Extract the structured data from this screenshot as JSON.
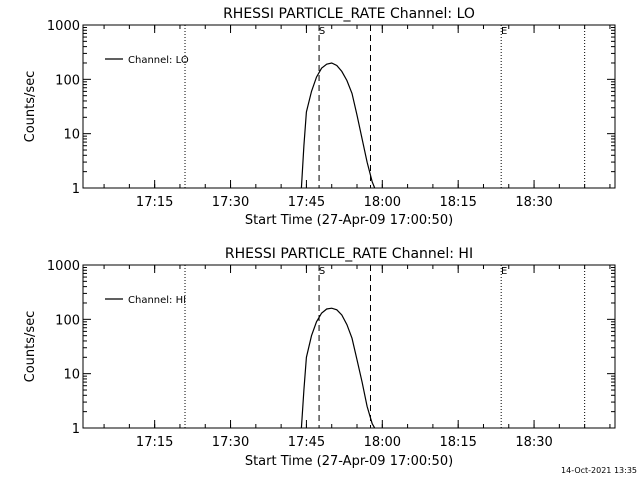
{
  "footer": {
    "timestamp": "14-Oct-2021 13:35"
  },
  "chart_data": [
    {
      "type": "line",
      "title": "RHESSI PARTICLE_RATE Channel: LO",
      "xlabel": "Start Time (27-Apr-09 17:00:50)",
      "ylabel": "Counts/sec",
      "y_scale": "log",
      "ylim": [
        1,
        1000
      ],
      "xlim": [
        "17:00:50",
        "18:46:00"
      ],
      "x_tick_labels": [
        "17:15",
        "17:30",
        "17:45",
        "18:00",
        "18:15",
        "18:30"
      ],
      "x_ticks": [
        "17:15",
        "17:30",
        "17:45",
        "18:00",
        "18:15",
        "18:30"
      ],
      "y_tick_labels": [
        "1",
        "10",
        "100",
        "1000"
      ],
      "y_ticks": [
        1,
        10,
        100,
        1000
      ],
      "legend": {
        "label": "Channel: LO",
        "position": "top-left"
      },
      "series": [
        {
          "name": "Channel: LO",
          "x": [
            "17:44:00",
            "17:44:30",
            "17:45:00",
            "17:46:00",
            "17:47:00",
            "17:48:00",
            "17:49:00",
            "17:50:00",
            "17:51:00",
            "17:52:00",
            "17:53:00",
            "17:54:00",
            "17:55:00",
            "17:56:00",
            "17:57:00",
            "17:58:00",
            "17:58:30"
          ],
          "y": [
            1,
            6,
            25,
            60,
            110,
            160,
            190,
            200,
            180,
            140,
            95,
            55,
            22,
            8,
            3,
            1.3,
            1
          ]
        }
      ],
      "markers": [
        {
          "label": "",
          "time": "17:21:00",
          "style": "dotted"
        },
        {
          "label": "S",
          "time": "17:47:30",
          "style": "dashed"
        },
        {
          "label": "",
          "time": "17:57:40",
          "style": "dashed"
        },
        {
          "label": "E",
          "time": "18:23:30",
          "style": "dotted"
        },
        {
          "label": "",
          "time": "18:40:00",
          "style": "dotted"
        }
      ]
    },
    {
      "type": "line",
      "title": "RHESSI PARTICLE_RATE Channel: HI",
      "xlabel": "Start Time (27-Apr-09 17:00:50)",
      "ylabel": "Counts/sec",
      "y_scale": "log",
      "ylim": [
        1,
        1000
      ],
      "xlim": [
        "17:00:50",
        "18:46:00"
      ],
      "x_tick_labels": [
        "17:15",
        "17:30",
        "17:45",
        "18:00",
        "18:15",
        "18:30"
      ],
      "x_ticks": [
        "17:15",
        "17:30",
        "17:45",
        "18:00",
        "18:15",
        "18:30"
      ],
      "y_tick_labels": [
        "1",
        "10",
        "100",
        "1000"
      ],
      "y_ticks": [
        1,
        10,
        100,
        1000
      ],
      "legend": {
        "label": "Channel: HI",
        "position": "top-left"
      },
      "series": [
        {
          "name": "Channel: HI",
          "x": [
            "17:44:00",
            "17:44:30",
            "17:45:00",
            "17:46:00",
            "17:47:00",
            "17:48:00",
            "17:49:00",
            "17:50:00",
            "17:51:00",
            "17:52:00",
            "17:53:00",
            "17:54:00",
            "17:55:00",
            "17:56:00",
            "17:57:00",
            "17:58:00",
            "17:58:30"
          ],
          "y": [
            1,
            5,
            20,
            50,
            90,
            130,
            155,
            160,
            150,
            120,
            80,
            45,
            18,
            7,
            2.5,
            1.2,
            1
          ]
        }
      ],
      "markers": [
        {
          "label": "",
          "time": "17:21:00",
          "style": "dotted"
        },
        {
          "label": "S",
          "time": "17:47:30",
          "style": "dashed"
        },
        {
          "label": "",
          "time": "17:57:40",
          "style": "dashed"
        },
        {
          "label": "E",
          "time": "18:23:30",
          "style": "dotted"
        },
        {
          "label": "",
          "time": "18:40:00",
          "style": "dotted"
        }
      ]
    }
  ]
}
